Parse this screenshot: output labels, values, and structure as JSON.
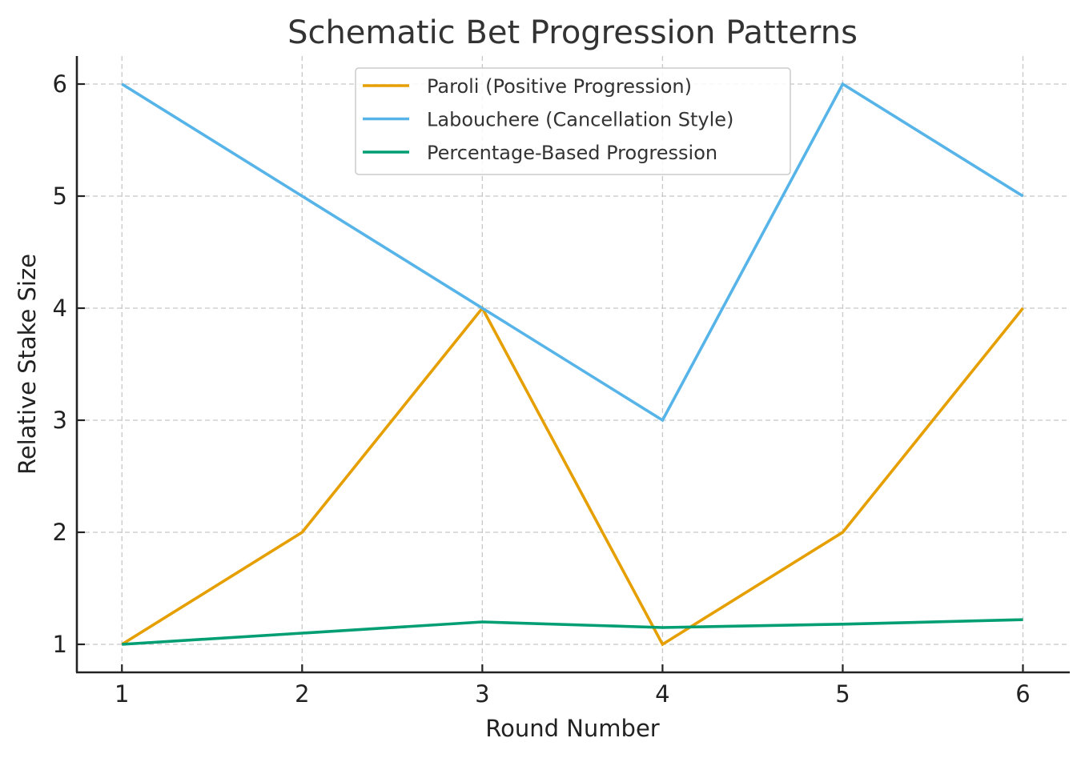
{
  "chart_data": {
    "type": "line",
    "title": "Schematic Bet Progression Patterns",
    "xlabel": "Round Number",
    "ylabel": "Relative Stake Size",
    "x": [
      1,
      2,
      3,
      4,
      5,
      6
    ],
    "xticks": [
      "1",
      "2",
      "3",
      "4",
      "5",
      "6"
    ],
    "yticks": [
      "1",
      "2",
      "3",
      "4",
      "5",
      "6"
    ],
    "xlim": [
      0.75,
      6.26
    ],
    "ylim": [
      0.75,
      6.25
    ],
    "grid": true,
    "legend_position": "upper center",
    "series": [
      {
        "name": "Paroli (Positive Progression)",
        "color": "#E69F00",
        "values": [
          1,
          2,
          4,
          1,
          2,
          4
        ]
      },
      {
        "name": "Labouchere (Cancellation Style)",
        "color": "#56B4E9",
        "values": [
          6,
          5,
          4,
          3,
          6,
          5
        ]
      },
      {
        "name": "Percentage-Based Progression",
        "color": "#009E73",
        "values": [
          1.0,
          1.1,
          1.2,
          1.15,
          1.18,
          1.22
        ]
      }
    ]
  }
}
